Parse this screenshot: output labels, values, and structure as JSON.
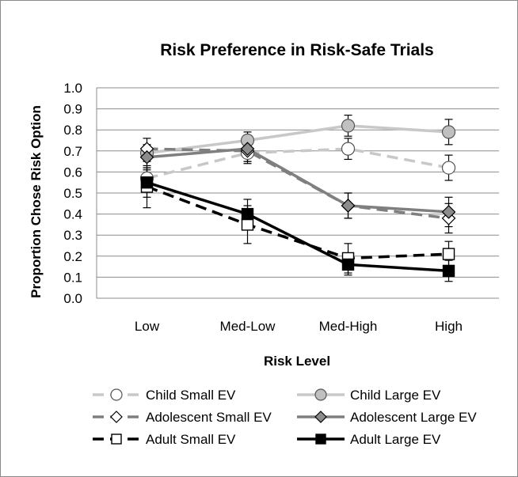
{
  "chart_data": {
    "type": "line",
    "title": "Risk Preference in Risk-Safe Trials",
    "xlabel": "Risk Level",
    "ylabel": "Proportion Chose Risk Option",
    "categories": [
      "Low",
      "Med-Low",
      "Med-High",
      "High"
    ],
    "ylim": [
      0,
      1.0
    ],
    "yticks": [
      "0.0",
      "0.1",
      "0.2",
      "0.3",
      "0.4",
      "0.5",
      "0.6",
      "0.7",
      "0.8",
      "0.9",
      "1.0"
    ],
    "grid": true,
    "legend_position": "bottom",
    "series": [
      {
        "name": "Child Small EV",
        "values": [
          0.57,
          0.69,
          0.71,
          0.62
        ],
        "errors": [
          0.04,
          0.04,
          0.05,
          0.06
        ],
        "color": "#c8c8c8",
        "dash": "dashed",
        "marker": "circle",
        "marker_fill": "#ffffff"
      },
      {
        "name": "Child Large EV",
        "values": [
          0.69,
          0.75,
          0.82,
          0.79
        ],
        "errors": [
          0.04,
          0.04,
          0.05,
          0.06
        ],
        "color": "#c8c8c8",
        "dash": "solid",
        "marker": "circle",
        "marker_fill": "#c0c0c0"
      },
      {
        "name": "Adolescent Small EV",
        "values": [
          0.71,
          0.7,
          0.44,
          0.38
        ],
        "errors": [
          0.05,
          0.06,
          0.06,
          0.07
        ],
        "color": "#7f7f7f",
        "dash": "dashed",
        "marker": "diamond",
        "marker_fill": "#ffffff"
      },
      {
        "name": "Adolescent Large EV",
        "values": [
          0.67,
          0.71,
          0.44,
          0.41
        ],
        "errors": [
          0.05,
          0.06,
          0.06,
          0.07
        ],
        "color": "#7f7f7f",
        "dash": "solid",
        "marker": "diamond",
        "marker_fill": "#8c8c8c"
      },
      {
        "name": "Adult Small EV",
        "values": [
          0.53,
          0.35,
          0.19,
          0.21
        ],
        "errors": [
          0.1,
          0.09,
          0.07,
          0.06
        ],
        "color": "#000000",
        "dash": "dashed",
        "marker": "square",
        "marker_fill": "#ffffff"
      },
      {
        "name": "Adult Large EV",
        "values": [
          0.55,
          0.4,
          0.16,
          0.13
        ],
        "errors": [
          0.07,
          0.07,
          0.05,
          0.05
        ],
        "color": "#000000",
        "dash": "solid",
        "marker": "square",
        "marker_fill": "#000000"
      }
    ]
  }
}
